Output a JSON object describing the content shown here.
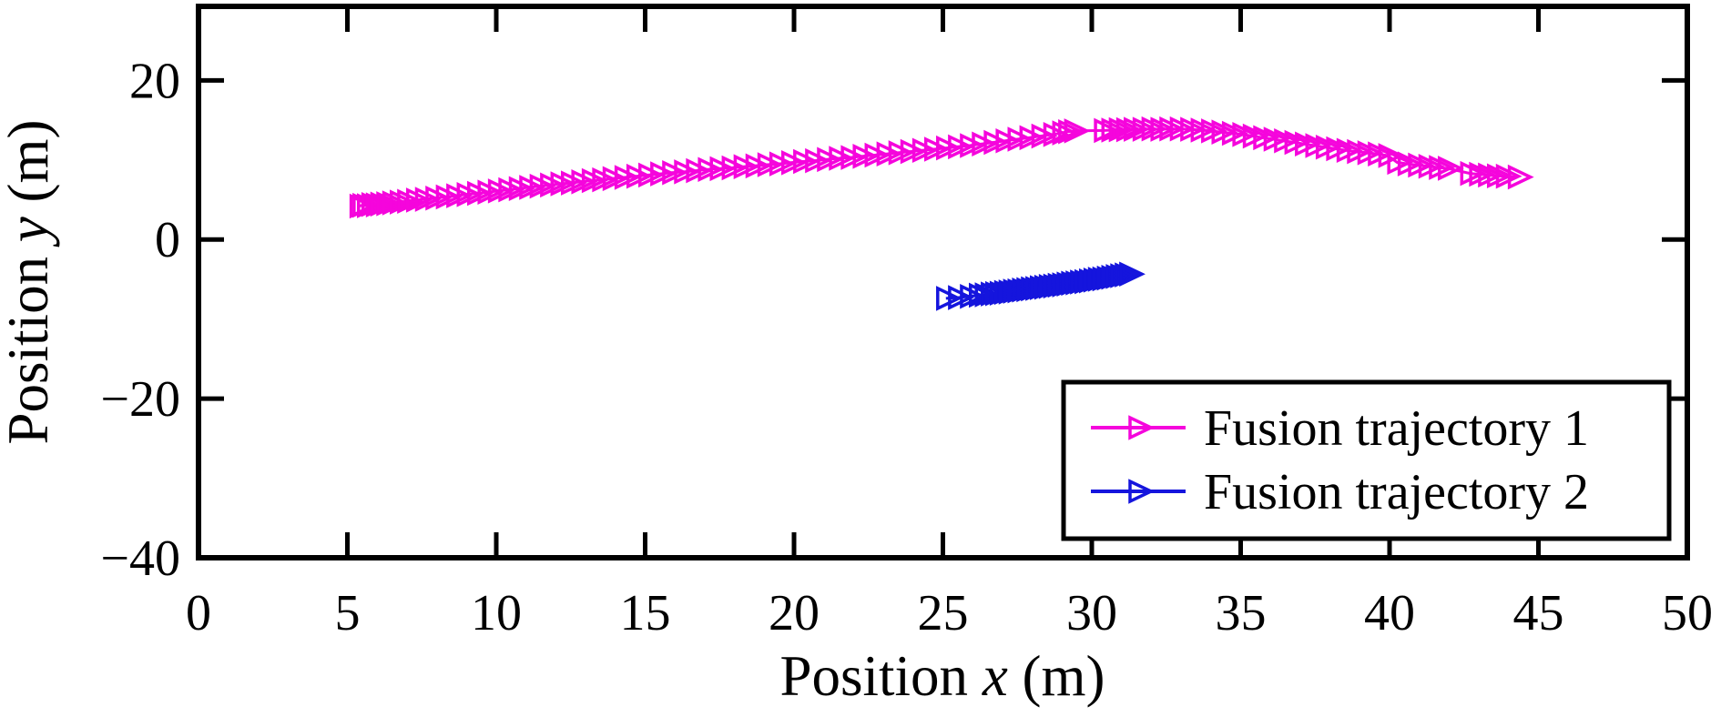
{
  "figure": {
    "background_color": "#FFFFFF",
    "axis_color": "#000000",
    "xlabel_parts": {
      "prefix": "Position ",
      "variable": "x",
      "suffix": " (m)"
    },
    "ylabel_parts": {
      "prefix": "Position ",
      "variable": "y",
      "suffix": " (m)"
    }
  },
  "chart_data": {
    "type": "line",
    "title": "",
    "xlabel": "Position x (m)",
    "ylabel": "Position y (m)",
    "xlim": [
      0,
      50
    ],
    "ylim": [
      -40,
      29.3
    ],
    "x_ticks": [
      0,
      5,
      10,
      15,
      20,
      25,
      30,
      35,
      40,
      45,
      50
    ],
    "x_tick_labels": [
      "0",
      "5",
      "10",
      "15",
      "20",
      "25",
      "30",
      "35",
      "40",
      "45",
      "50"
    ],
    "y_ticks": [
      20,
      0,
      -20,
      -40
    ],
    "y_tick_labels": [
      "20",
      "0",
      "−20",
      "−40"
    ],
    "grid": false,
    "tick_style": "inward-mirrored-all-sides",
    "marker": "open-right-triangle",
    "legend_position": "lower-right",
    "series": [
      {
        "name": "Fusion trajectory 1",
        "color": "#F505DC",
        "points": [
          [
            5.4,
            4.2
          ],
          [
            5.5,
            4.3
          ],
          [
            5.65,
            4.25
          ],
          [
            5.8,
            4.4
          ],
          [
            5.95,
            4.35
          ],
          [
            6.1,
            4.45
          ],
          [
            6.3,
            4.5
          ],
          [
            6.5,
            4.6
          ],
          [
            6.75,
            4.7
          ],
          [
            7.0,
            4.8
          ],
          [
            7.3,
            4.95
          ],
          [
            7.6,
            5.05
          ],
          [
            7.95,
            5.2
          ],
          [
            8.3,
            5.35
          ],
          [
            8.65,
            5.5
          ],
          [
            9.0,
            5.65
          ],
          [
            9.35,
            5.8
          ],
          [
            9.7,
            5.95
          ],
          [
            10.05,
            6.1
          ],
          [
            10.4,
            6.25
          ],
          [
            10.75,
            6.4
          ],
          [
            11.1,
            6.55
          ],
          [
            11.45,
            6.7
          ],
          [
            11.8,
            6.85
          ],
          [
            12.15,
            7.0
          ],
          [
            12.5,
            7.1
          ],
          [
            12.85,
            7.25
          ],
          [
            13.2,
            7.4
          ],
          [
            13.55,
            7.5
          ],
          [
            13.9,
            7.65
          ],
          [
            14.3,
            7.8
          ],
          [
            14.7,
            7.95
          ],
          [
            15.1,
            8.1
          ],
          [
            15.5,
            8.25
          ],
          [
            15.9,
            8.4
          ],
          [
            16.3,
            8.5
          ],
          [
            16.7,
            8.65
          ],
          [
            17.1,
            8.8
          ],
          [
            17.5,
            8.9
          ],
          [
            17.9,
            9.0
          ],
          [
            18.3,
            9.15
          ],
          [
            18.7,
            9.25
          ],
          [
            19.1,
            9.4
          ],
          [
            19.5,
            9.5
          ],
          [
            19.9,
            9.65
          ],
          [
            20.3,
            9.8
          ],
          [
            20.7,
            9.9
          ],
          [
            21.1,
            10.05
          ],
          [
            21.5,
            10.2
          ],
          [
            21.9,
            10.3
          ],
          [
            22.3,
            10.45
          ],
          [
            22.7,
            10.6
          ],
          [
            23.1,
            10.75
          ],
          [
            23.5,
            10.9
          ],
          [
            23.9,
            11.05
          ],
          [
            24.3,
            11.2
          ],
          [
            24.7,
            11.35
          ],
          [
            25.1,
            11.5
          ],
          [
            25.5,
            11.65
          ],
          [
            25.9,
            11.8
          ],
          [
            26.3,
            12.0
          ],
          [
            26.7,
            12.2
          ],
          [
            27.1,
            12.4
          ],
          [
            27.5,
            12.6
          ],
          [
            27.9,
            12.8
          ],
          [
            28.3,
            13.0
          ],
          [
            28.7,
            13.2
          ],
          [
            29.0,
            13.4
          ],
          [
            29.2,
            13.55
          ],
          [
            29.4,
            13.65
          ],
          [
            30.4,
            13.7
          ],
          [
            30.65,
            13.75
          ],
          [
            30.9,
            13.8
          ],
          [
            31.15,
            13.8
          ],
          [
            31.4,
            13.85
          ],
          [
            31.7,
            13.85
          ],
          [
            32.0,
            13.9
          ],
          [
            32.3,
            13.85
          ],
          [
            32.6,
            13.9
          ],
          [
            32.95,
            13.9
          ],
          [
            33.3,
            13.85
          ],
          [
            33.65,
            13.75
          ],
          [
            34.0,
            13.65
          ],
          [
            34.35,
            13.5
          ],
          [
            34.7,
            13.35
          ],
          [
            35.05,
            13.2
          ],
          [
            35.4,
            13.0
          ],
          [
            35.75,
            12.8
          ],
          [
            36.1,
            12.6
          ],
          [
            36.45,
            12.4
          ],
          [
            36.8,
            12.2
          ],
          [
            37.15,
            12.0
          ],
          [
            37.5,
            11.8
          ],
          [
            37.85,
            11.6
          ],
          [
            38.2,
            11.4
          ],
          [
            38.55,
            11.2
          ],
          [
            38.9,
            11.05
          ],
          [
            39.25,
            10.9
          ],
          [
            39.6,
            10.75
          ],
          [
            39.95,
            10.55
          ],
          [
            40.25,
            9.7
          ],
          [
            40.6,
            9.5
          ],
          [
            40.95,
            9.35
          ],
          [
            41.3,
            9.2
          ],
          [
            41.65,
            9.05
          ],
          [
            41.95,
            8.95
          ],
          [
            42.7,
            8.3
          ],
          [
            43.0,
            8.2
          ],
          [
            43.3,
            8.1
          ],
          [
            43.6,
            8.0
          ],
          [
            43.9,
            7.95
          ],
          [
            44.3,
            7.85
          ]
        ]
      },
      {
        "name": "Fusion trajectory 2",
        "color": "#1515DD",
        "points": [
          [
            25.1,
            -7.4
          ],
          [
            25.5,
            -7.3
          ],
          [
            25.9,
            -7.15
          ],
          [
            26.2,
            -7.0
          ],
          [
            26.4,
            -6.95
          ],
          [
            26.6,
            -6.85
          ],
          [
            26.75,
            -6.8
          ],
          [
            26.9,
            -6.75
          ],
          [
            27.05,
            -6.65
          ],
          [
            27.2,
            -6.6
          ],
          [
            27.35,
            -6.5
          ],
          [
            27.5,
            -6.45
          ],
          [
            27.65,
            -6.35
          ],
          [
            27.8,
            -6.3
          ],
          [
            27.95,
            -6.2
          ],
          [
            28.1,
            -6.15
          ],
          [
            28.25,
            -6.05
          ],
          [
            28.4,
            -6.0
          ],
          [
            28.55,
            -5.9
          ],
          [
            28.7,
            -5.85
          ],
          [
            28.85,
            -5.75
          ],
          [
            29.0,
            -5.7
          ],
          [
            29.15,
            -5.6
          ],
          [
            29.3,
            -5.5
          ],
          [
            29.45,
            -5.45
          ],
          [
            29.6,
            -5.35
          ],
          [
            29.75,
            -5.3
          ],
          [
            29.9,
            -5.2
          ],
          [
            30.05,
            -5.1
          ],
          [
            30.2,
            -5.0
          ],
          [
            30.35,
            -4.95
          ],
          [
            30.5,
            -4.85
          ],
          [
            30.65,
            -4.75
          ],
          [
            30.8,
            -4.65
          ],
          [
            30.95,
            -4.55
          ],
          [
            31.1,
            -4.45
          ],
          [
            31.25,
            -4.35
          ]
        ]
      }
    ]
  },
  "legend": {
    "entries": [
      "Fusion trajectory 1",
      "Fusion trajectory 2"
    ]
  }
}
